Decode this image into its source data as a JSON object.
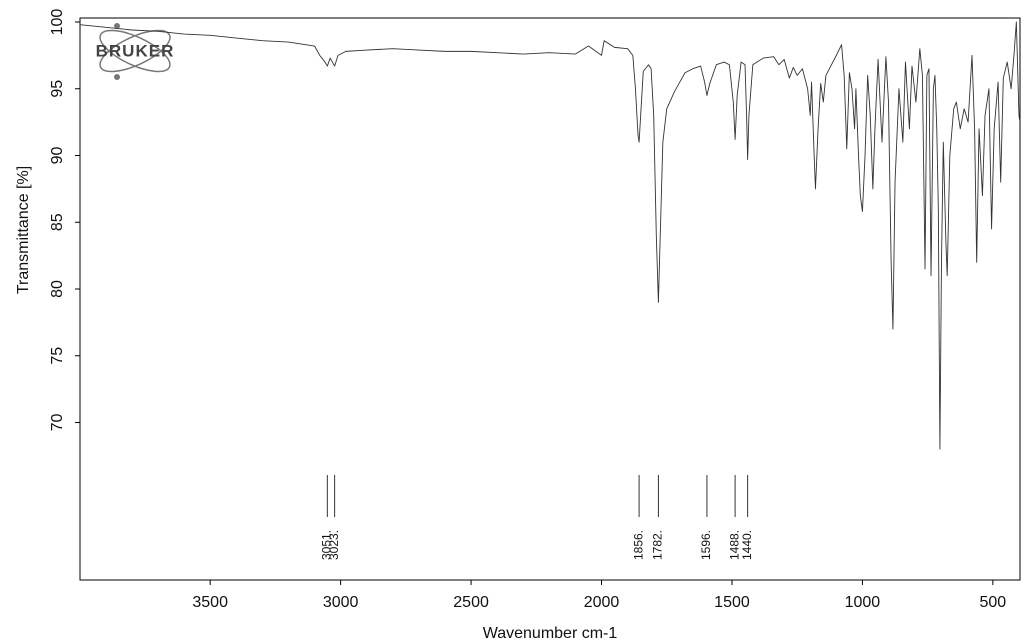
{
  "logo": "BRUKER",
  "chart_data": {
    "type": "line",
    "xlabel": "Wavenumber cm-1",
    "ylabel": "Transmittance [%]",
    "xlim": [
      3999,
      396
    ],
    "ylim": [
      58.2,
      100.3
    ],
    "xticks": [
      3500,
      3000,
      2500,
      2000,
      1500,
      1000,
      500
    ],
    "yticks": [
      100,
      95,
      90,
      85,
      80,
      75,
      70
    ],
    "x": [
      3999,
      3900,
      3800,
      3700,
      3600,
      3500,
      3400,
      3300,
      3200,
      3100,
      3080,
      3060,
      3051,
      3040,
      3023,
      3010,
      2980,
      2900,
      2800,
      2700,
      2600,
      2500,
      2400,
      2300,
      2200,
      2100,
      2050,
      2000,
      1990,
      1950,
      1900,
      1880,
      1870,
      1860,
      1856,
      1850,
      1840,
      1820,
      1810,
      1800,
      1790,
      1782,
      1775,
      1765,
      1750,
      1720,
      1700,
      1680,
      1650,
      1620,
      1605,
      1596,
      1585,
      1560,
      1530,
      1510,
      1495,
      1488,
      1480,
      1465,
      1450,
      1444,
      1440,
      1435,
      1420,
      1380,
      1340,
      1320,
      1300,
      1280,
      1265,
      1250,
      1230,
      1210,
      1200,
      1195,
      1185,
      1180,
      1170,
      1160,
      1150,
      1140,
      1100,
      1080,
      1070,
      1060,
      1050,
      1040,
      1030,
      1025,
      1015,
      1008,
      1000,
      990,
      980,
      970,
      960,
      952,
      940,
      925,
      910,
      900,
      890,
      883,
      875,
      860,
      845,
      835,
      820,
      810,
      795,
      780,
      770,
      760,
      753,
      745,
      737,
      728,
      722,
      715,
      709,
      703,
      697,
      690,
      680,
      675,
      665,
      650,
      640,
      625,
      610,
      595,
      580,
      570,
      562,
      553,
      540,
      530,
      515,
      505,
      495,
      480,
      470,
      460,
      445,
      430,
      420,
      410,
      400,
      396
    ],
    "series": [
      {
        "name": "Transmittance",
        "color": "#333333",
        "values": [
          99.8,
          99.6,
          99.4,
          99.3,
          99.1,
          99.0,
          98.8,
          98.6,
          98.5,
          98.2,
          97.5,
          97.0,
          96.7,
          97.3,
          96.7,
          97.5,
          97.8,
          97.9,
          98.0,
          97.9,
          97.8,
          97.8,
          97.7,
          97.6,
          97.7,
          97.6,
          98.2,
          97.5,
          98.6,
          98.1,
          98.0,
          97.5,
          95.0,
          91.5,
          91.0,
          93.0,
          96.3,
          96.8,
          96.5,
          93.0,
          84.0,
          79.0,
          84.0,
          91.0,
          93.5,
          94.8,
          95.5,
          96.2,
          96.5,
          96.7,
          95.5,
          94.5,
          95.4,
          96.8,
          97.0,
          96.8,
          94.0,
          91.2,
          94.5,
          97.0,
          96.8,
          93.0,
          89.7,
          93.0,
          96.8,
          97.3,
          97.4,
          96.8,
          97.2,
          95.8,
          96.6,
          96.0,
          96.5,
          95.0,
          93.0,
          95.5,
          90.0,
          87.5,
          92.0,
          95.4,
          94.0,
          96.0,
          97.5,
          98.3,
          96.0,
          90.5,
          96.2,
          95.0,
          92.0,
          95.0,
          90.0,
          87.0,
          85.8,
          90.0,
          96.0,
          93.0,
          87.5,
          92.0,
          97.2,
          91.0,
          97.4,
          94.0,
          82.0,
          77.0,
          88.0,
          95.0,
          91.0,
          97.0,
          92.0,
          96.7,
          94.0,
          98.0,
          96.0,
          81.5,
          96.0,
          96.5,
          81.0,
          95.0,
          96.0,
          92.0,
          86.0,
          68.0,
          82.0,
          91.0,
          83.5,
          81.0,
          90.0,
          93.5,
          94.0,
          92.0,
          93.5,
          92.5,
          97.5,
          92.0,
          82.0,
          92.0,
          87.0,
          93.0,
          95.0,
          84.5,
          92.0,
          95.5,
          88.0,
          95.8,
          97.0,
          95.0,
          97.3,
          100.0,
          93.0,
          92.5
        ]
      }
    ],
    "peak_labels": [
      {
        "value": 3051,
        "label": "3051."
      },
      {
        "value": 3023,
        "label": "3023."
      },
      {
        "value": 1856,
        "label": "1856."
      },
      {
        "value": 1782,
        "label": "1782."
      },
      {
        "value": 1596,
        "label": "1596."
      },
      {
        "value": 1488,
        "label": "1488."
      },
      {
        "value": 1440,
        "label": "1440."
      }
    ]
  }
}
